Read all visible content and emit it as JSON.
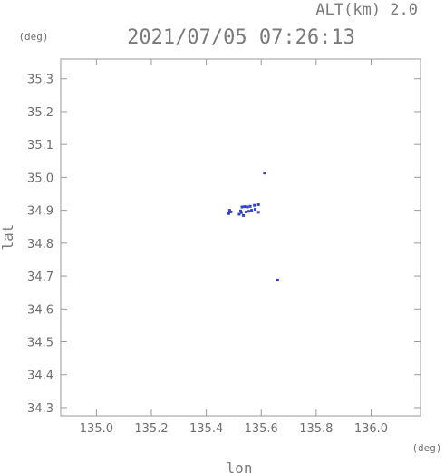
{
  "chart_data": {
    "type": "scatter",
    "title": "2021/07/05 07:26:13",
    "subtitle": "ALT(km) 2.0",
    "xlabel": "lon",
    "ylabel": "lat",
    "x_unit": "(deg)",
    "y_unit": "(deg)",
    "xlim": [
      134.87,
      136.18
    ],
    "ylim": [
      34.275,
      35.36
    ],
    "xticks": [
      135.0,
      135.2,
      135.4,
      135.6,
      135.8,
      136.0
    ],
    "xtick_labels": [
      "135.0",
      "135.2",
      "135.4",
      "135.6",
      "135.8",
      "136.0"
    ],
    "yticks": [
      34.3,
      34.4,
      34.5,
      34.6,
      34.7,
      34.8,
      34.9,
      35.0,
      35.1,
      35.2,
      35.3
    ],
    "ytick_labels": [
      "34.3",
      "34.4",
      "34.5",
      "34.6",
      "34.7",
      "34.8",
      "34.9",
      "35.0",
      "35.1",
      "35.2",
      "35.3"
    ],
    "point_color": "#3344cc",
    "grid": false,
    "points": [
      {
        "lon": 135.485,
        "lat": 34.9
      },
      {
        "lon": 135.49,
        "lat": 34.895
      },
      {
        "lon": 135.482,
        "lat": 34.89
      },
      {
        "lon": 135.53,
        "lat": 34.91
      },
      {
        "lon": 135.54,
        "lat": 34.911
      },
      {
        "lon": 135.55,
        "lat": 34.91
      },
      {
        "lon": 135.56,
        "lat": 34.912
      },
      {
        "lon": 135.575,
        "lat": 34.915
      },
      {
        "lon": 135.59,
        "lat": 34.917
      },
      {
        "lon": 135.525,
        "lat": 34.898
      },
      {
        "lon": 135.528,
        "lat": 34.893
      },
      {
        "lon": 135.545,
        "lat": 34.895
      },
      {
        "lon": 135.555,
        "lat": 34.897
      },
      {
        "lon": 135.565,
        "lat": 34.9
      },
      {
        "lon": 135.578,
        "lat": 34.903
      },
      {
        "lon": 135.59,
        "lat": 34.894
      },
      {
        "lon": 135.52,
        "lat": 34.888
      },
      {
        "lon": 135.535,
        "lat": 34.884
      },
      {
        "lon": 135.612,
        "lat": 35.013
      },
      {
        "lon": 135.66,
        "lat": 34.688
      }
    ]
  }
}
